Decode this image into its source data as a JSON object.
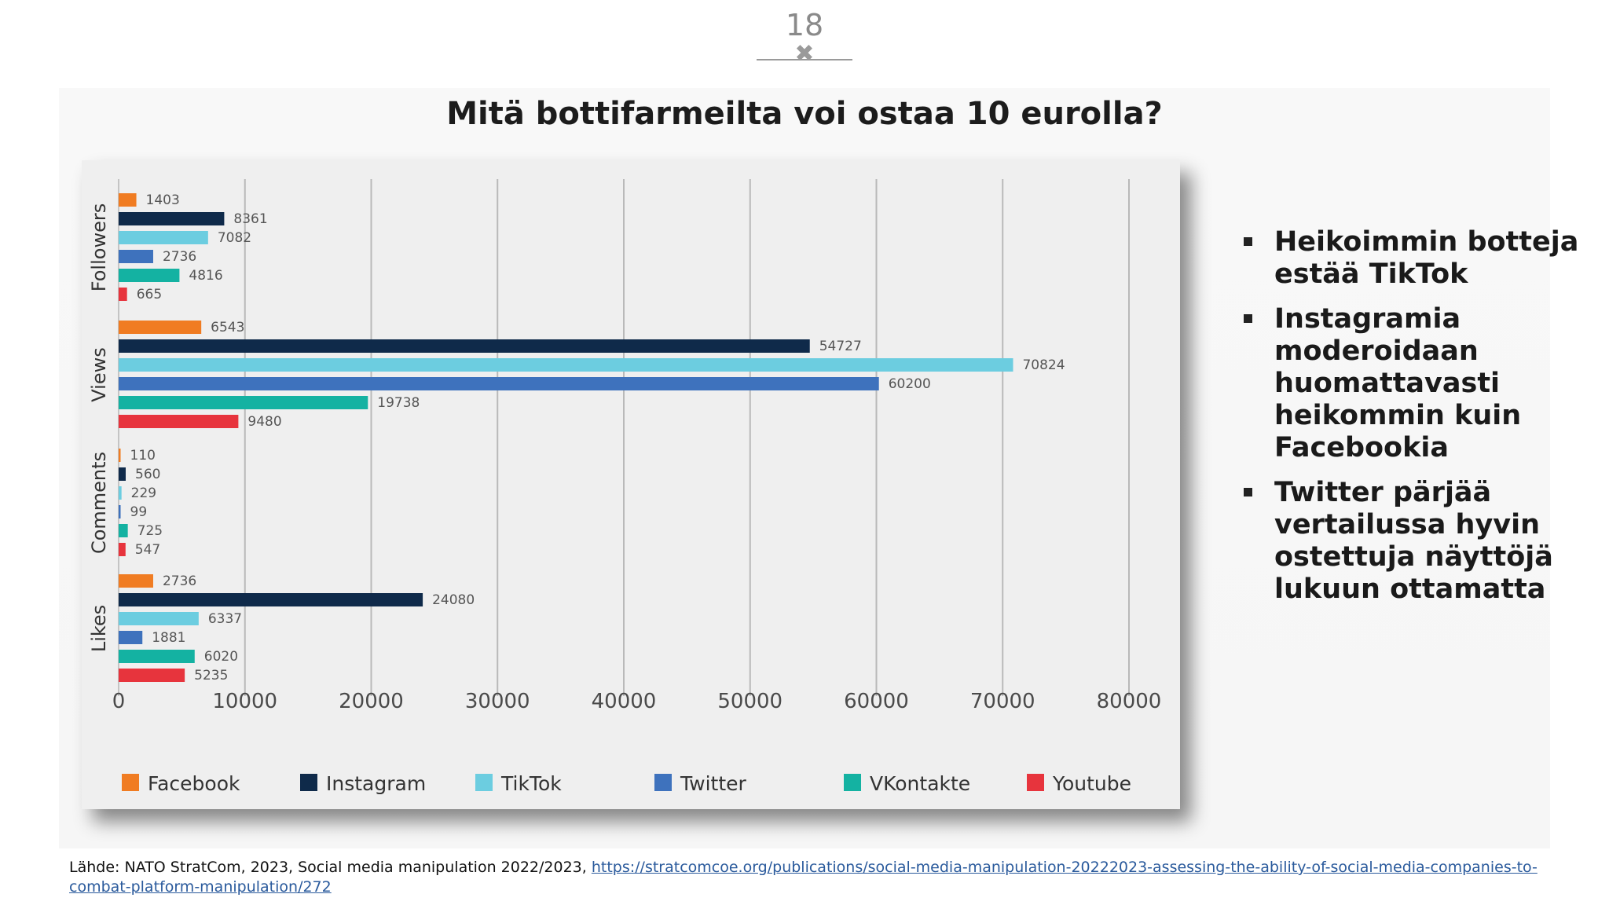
{
  "slide": {
    "page_number": "18",
    "title": "Mitä bottifarmeilta voi ostaa 10 eurolla?"
  },
  "bullets": [
    "Heikoimmin botteja estää TikTok",
    "Instagramia moderoidaan huomattavasti heikommin kuin Facebookia",
    "Twitter pärjää vertailussa hyvin ostettuja näyttöjä lukuun ottamatta"
  ],
  "source": {
    "prefix": "Lähde: NATO StratCom, 2023, Social media manipulation 2022/2023, ",
    "link_text": "https://stratcomcoe.org/publications/social-media-manipulation-20222023-assessing-the-ability-of-social-media-companies-to-combat-platform-manipulation/272"
  },
  "colors": {
    "Facebook": "#f07c22",
    "Instagram": "#0f2a4a",
    "TikTok": "#6ccde0",
    "Twitter": "#3e72bd",
    "VKontakte": "#14b2a2",
    "Youtube": "#e7343d"
  },
  "chart_data": {
    "type": "bar",
    "orientation": "horizontal",
    "categories": [
      "Followers",
      "Views",
      "Comments",
      "Likes"
    ],
    "series": [
      {
        "name": "Facebook",
        "values": [
          1403,
          6543,
          110,
          2736
        ]
      },
      {
        "name": "Instagram",
        "values": [
          8361,
          54727,
          560,
          24080
        ]
      },
      {
        "name": "TikTok",
        "values": [
          7082,
          70824,
          229,
          6337
        ]
      },
      {
        "name": "Twitter",
        "values": [
          2736,
          60200,
          99,
          1881
        ]
      },
      {
        "name": "VKontakte",
        "values": [
          4816,
          19738,
          725,
          6020
        ]
      },
      {
        "name": "Youtube",
        "values": [
          665,
          9480,
          547,
          5235
        ]
      }
    ],
    "x_ticks": [
      0,
      10000,
      20000,
      30000,
      40000,
      50000,
      60000,
      70000,
      80000
    ],
    "xlim": [
      0,
      80000
    ],
    "grid": "vertical",
    "legend_position": "bottom"
  }
}
